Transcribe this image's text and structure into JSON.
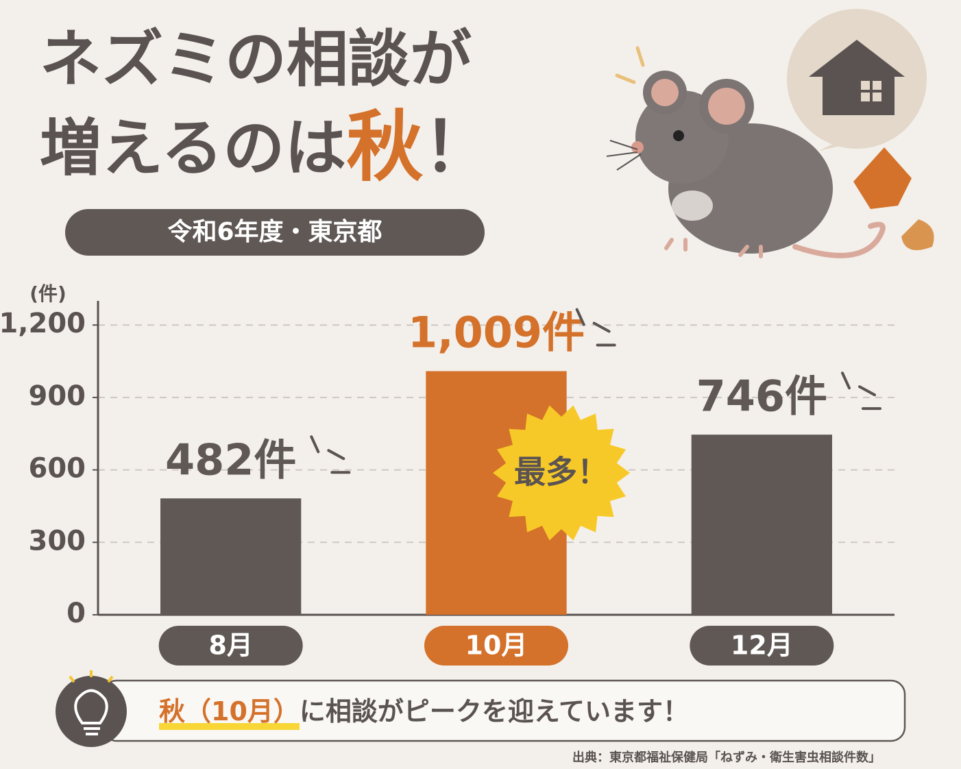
{
  "chart_data": {
    "type": "bar",
    "title": {
      "line1": "ネズミの相談が",
      "line2": "増えるのは",
      "highlight": "秋",
      "end": "！"
    },
    "subtitle": "令和6年度・東京都",
    "y_unit": "(件)",
    "categories": [
      "8月",
      "10月",
      "12月"
    ],
    "values": [
      482,
      1009,
      746
    ],
    "value_labels": [
      "482件",
      "1,009件",
      "746件"
    ],
    "colors": [
      "#5f5855",
      "#d4712a",
      "#5f5855"
    ],
    "ylim": [
      0,
      1300
    ],
    "yticks": [
      0,
      300,
      600,
      900,
      {
        "value": 1200,
        "label": "1,200"
      }
    ],
    "grid": true,
    "badge": "最多！",
    "callout": {
      "highlight": "秋（10月）",
      "text": "に相談がピークを迎えています！"
    },
    "source": "出典：東京都福祉保健局「ねずみ・衛生害虫相談件数」"
  }
}
